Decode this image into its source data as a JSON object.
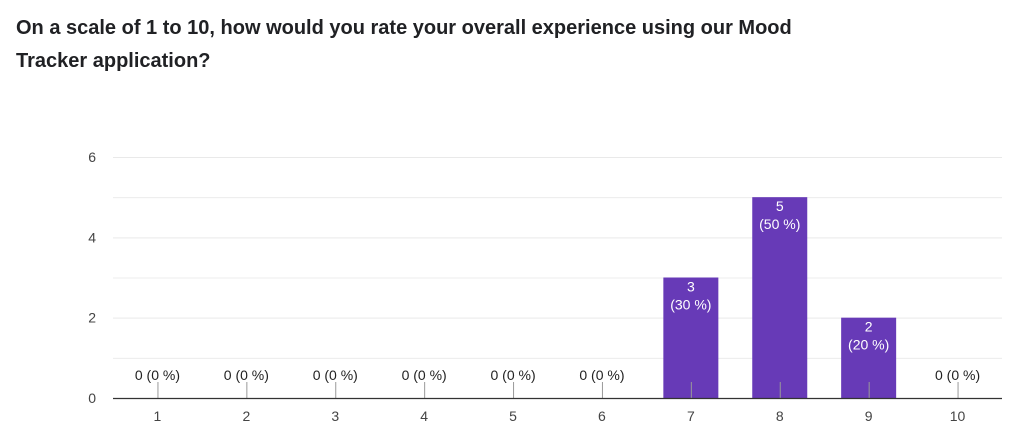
{
  "question": {
    "title": "On a scale of 1 to 10, how would you rate your overall experience using our Mood Tracker application?"
  },
  "colors": {
    "bar": "#673ab7",
    "grid": "#e9e9e9",
    "axis": "#333333",
    "bar_label": "#ffffff",
    "outside_label": "#222222",
    "tick_label": "#444444"
  },
  "chart_data": {
    "type": "bar",
    "title": "",
    "xlabel": "",
    "ylabel": "",
    "categories": [
      "1",
      "2",
      "3",
      "4",
      "5",
      "6",
      "7",
      "8",
      "9",
      "10"
    ],
    "values": [
      0,
      0,
      0,
      0,
      0,
      0,
      3,
      5,
      2,
      0
    ],
    "count_labels": [
      "0",
      "0",
      "0",
      "0",
      "0",
      "0",
      "3",
      "5",
      "2",
      "0"
    ],
    "percent_labels": [
      "(0 %)",
      "(0 %)",
      "(0 %)",
      "(0 %)",
      "(0 %)",
      "(0 %)",
      "(30 %)",
      "(50 %)",
      "(20 %)",
      "(0 %)"
    ],
    "ylim": [
      0,
      6
    ],
    "yticks": [
      0,
      2,
      4,
      6
    ],
    "grid": true,
    "legend": "none"
  }
}
